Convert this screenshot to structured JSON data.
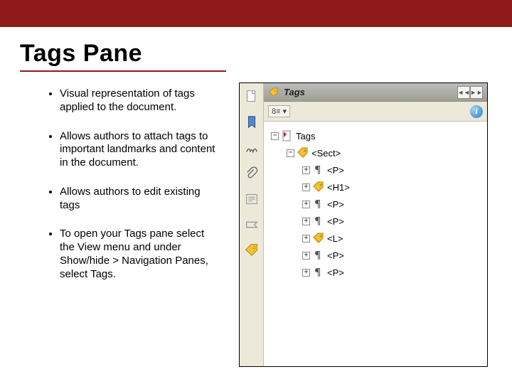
{
  "colors": {
    "accent_red": "#8f1a1a",
    "panel_bg": "#ece9d8",
    "tree_bg": "#ffffff",
    "header_grad_top": "#bcbcbc",
    "header_grad_bottom": "#9f9f93",
    "tag_yellow": "#f4c430",
    "pdf_red": "#d22"
  },
  "slide": {
    "title": "Tags Pane",
    "bullets": [
      "Visual representation of tags applied to the document.",
      "Allows authors to attach tags to important landmarks and content in the document.",
      "Allows authors to edit existing tags",
      "To open your Tags pane select the View menu and under Show/hide > Navigation Panes, select Tags."
    ]
  },
  "tags_panel": {
    "header_title": "Tags",
    "toolbar_dropdown_label": "8≡",
    "toolbar_arrow": "▾",
    "info_glyph": "i",
    "nav_prev": "◄◄",
    "nav_next": "►►",
    "vstrip_icons": [
      "pages-icon",
      "bookmark-icon",
      "signatures-icon",
      "attachments-icon",
      "articles-icon",
      "destinations-icon",
      "tag-icon"
    ],
    "tree": [
      {
        "indent": 0,
        "expander": "−",
        "icon": "pdf-root",
        "label": "Tags"
      },
      {
        "indent": 1,
        "expander": "−",
        "icon": "tag",
        "label": "<Sect>"
      },
      {
        "indent": 2,
        "expander": "+",
        "icon": "pilcrow",
        "label": "<P>"
      },
      {
        "indent": 2,
        "expander": "+",
        "icon": "tag",
        "label": "<H1>"
      },
      {
        "indent": 2,
        "expander": "+",
        "icon": "pilcrow",
        "label": "<P>"
      },
      {
        "indent": 2,
        "expander": "+",
        "icon": "pilcrow",
        "label": "<P>"
      },
      {
        "indent": 2,
        "expander": "+",
        "icon": "tag",
        "label": "<L>"
      },
      {
        "indent": 2,
        "expander": "+",
        "icon": "pilcrow",
        "label": "<P>"
      },
      {
        "indent": 2,
        "expander": "+",
        "icon": "pilcrow",
        "label": "<P>"
      }
    ]
  }
}
